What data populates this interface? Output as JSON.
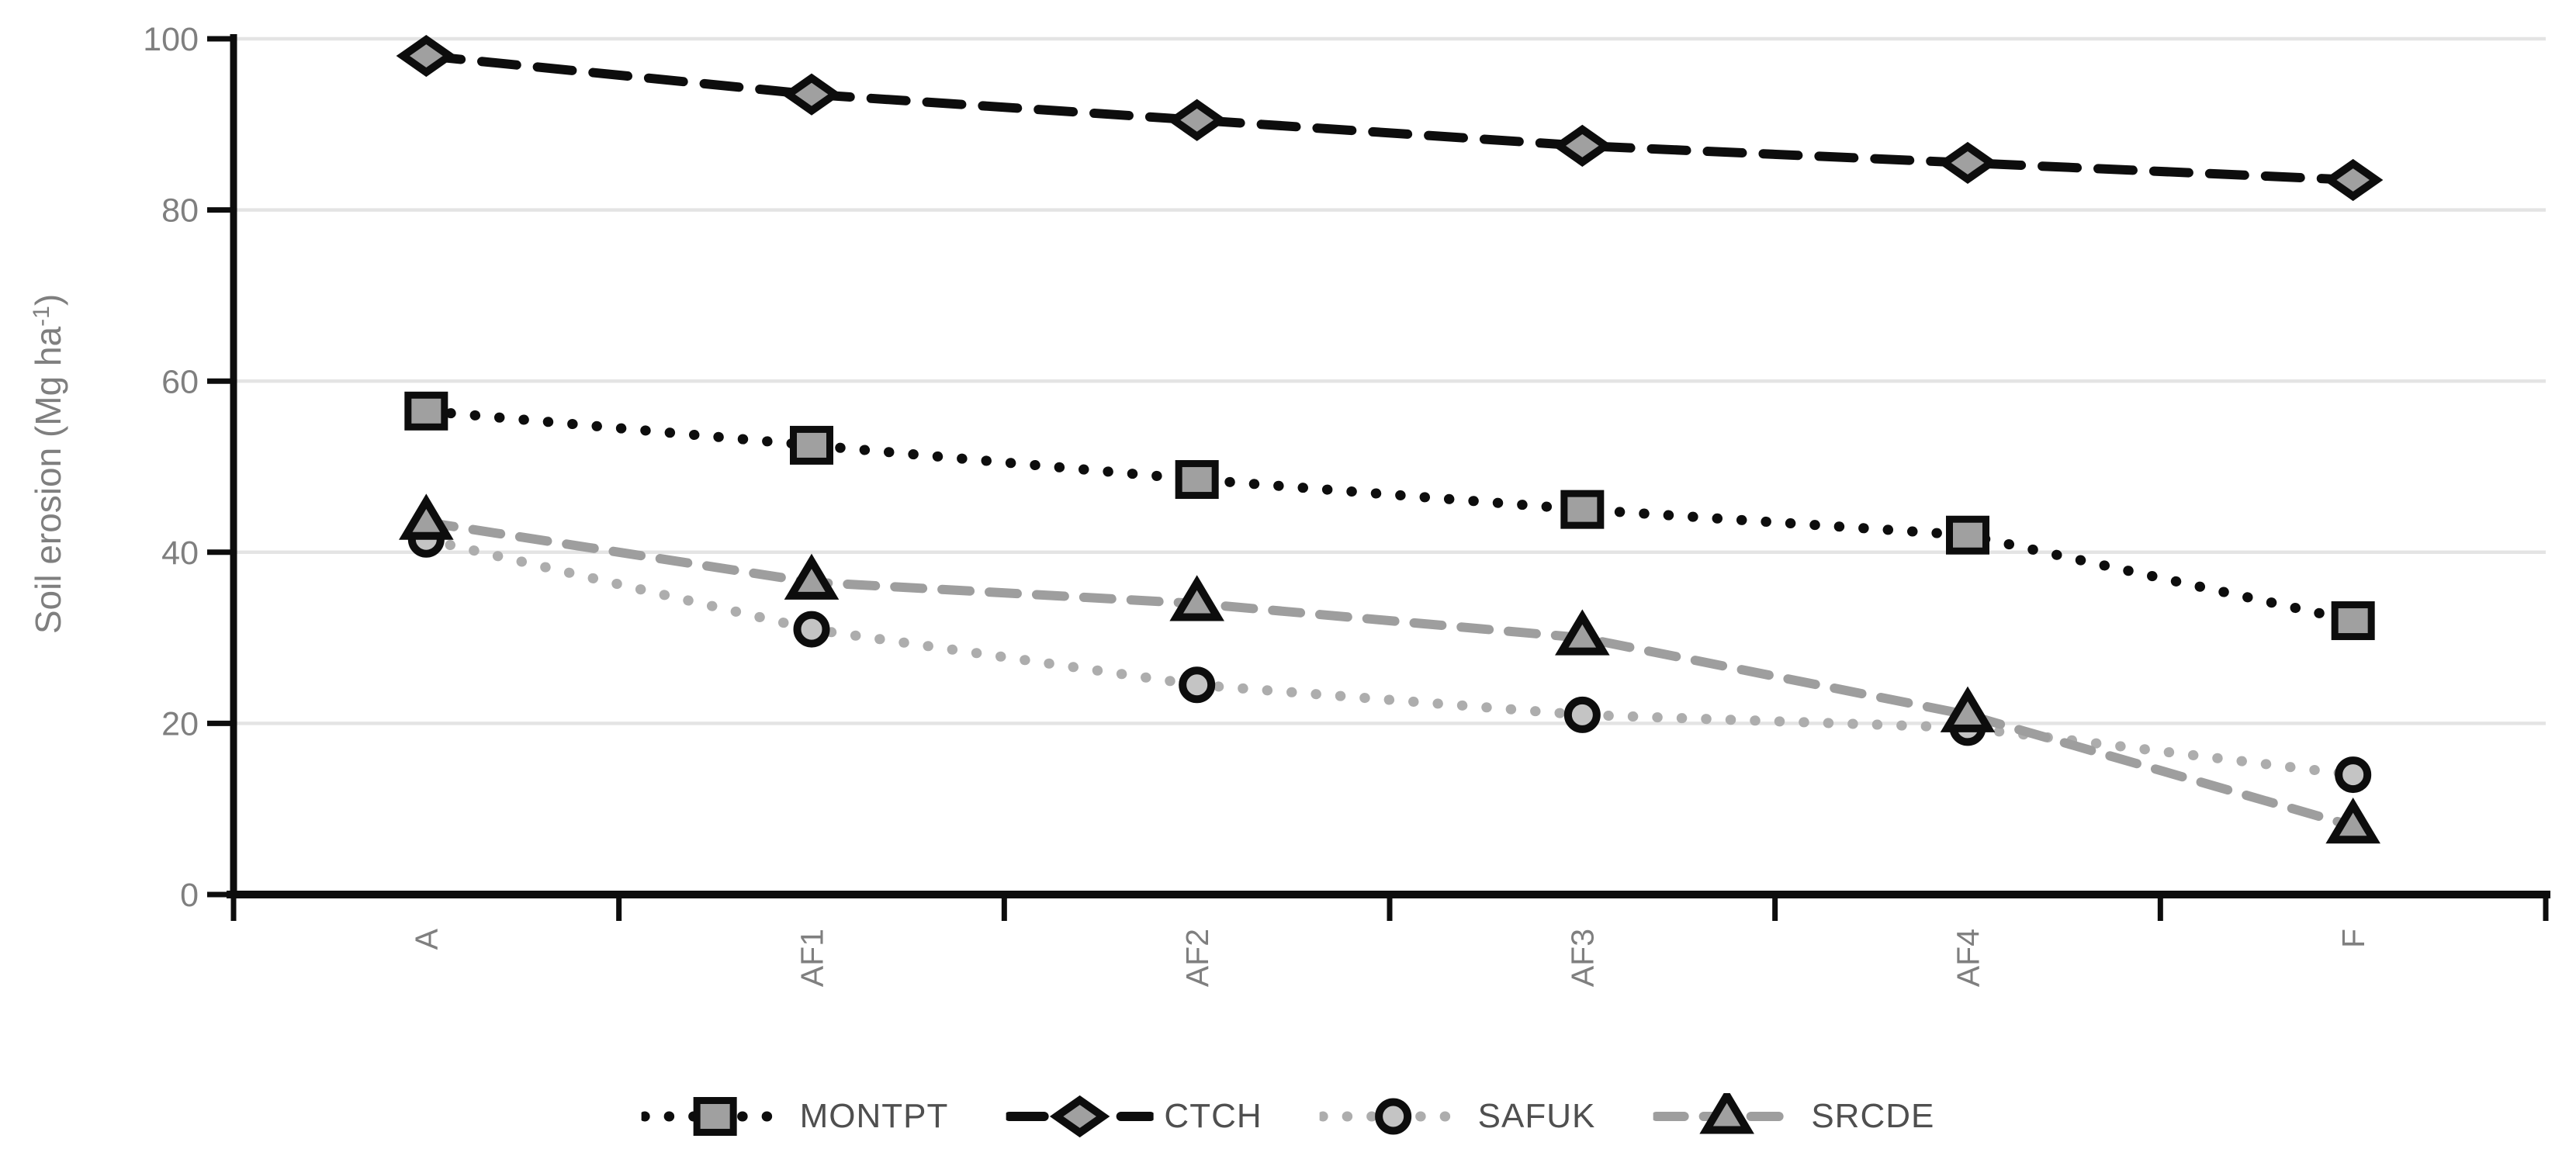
{
  "chart_data": {
    "type": "line",
    "title": "",
    "xlabel": "",
    "ylabel": "Soil erosion (Mg ha⁻¹)",
    "ylabel_parts": {
      "base": "Soil erosion (Mg ha",
      "sup": "-1",
      "close": ")"
    },
    "categories": [
      "A",
      "AF1",
      "AF2",
      "AF3",
      "AF4",
      "F"
    ],
    "yticks": [
      0,
      20,
      40,
      60,
      80,
      100
    ],
    "ylim": [
      0,
      100
    ],
    "grid": "horizontal",
    "legend_position": "bottom",
    "series": [
      {
        "name": "MONTPT",
        "marker": "square",
        "line_style": "dotted",
        "line_color": "#0d0d0d",
        "marker_fill": "#a0a0a0",
        "dash_pattern": [
          0.5,
          31
        ],
        "values": [
          56.5,
          52.5,
          48.5,
          45,
          42,
          32
        ]
      },
      {
        "name": "CTCH",
        "marker": "diamond",
        "line_style": "dashed",
        "line_color": "#0d0d0d",
        "marker_fill": "#a0a0a0",
        "dash_pattern": [
          45,
          27
        ],
        "values": [
          98,
          93.5,
          90.5,
          87.5,
          85.5,
          83.5
        ]
      },
      {
        "name": "SAFUK",
        "marker": "circle",
        "line_style": "dotted",
        "line_color": "#adadad",
        "marker_fill": "#c4c4c4",
        "dash_pattern": [
          0.5,
          31
        ],
        "values": [
          41.5,
          31,
          24.5,
          21,
          19.5,
          14
        ]
      },
      {
        "name": "SRCDE",
        "marker": "triangle",
        "line_style": "dashed",
        "line_color": "#9e9e9e",
        "marker_fill": "#a0a0a0",
        "dash_pattern": [
          36,
          25
        ],
        "values": [
          43.5,
          36.5,
          34,
          30,
          21,
          8
        ]
      }
    ]
  },
  "colors": {
    "background": "#ffffff",
    "axis": "#0d0d0d",
    "gridline": "#e4e4e4",
    "tick_label": "#7f7f7f",
    "axis_title": "#7f7f7f",
    "legend_text": "#4f4f4f",
    "marker_border": "#0d0d0d"
  }
}
